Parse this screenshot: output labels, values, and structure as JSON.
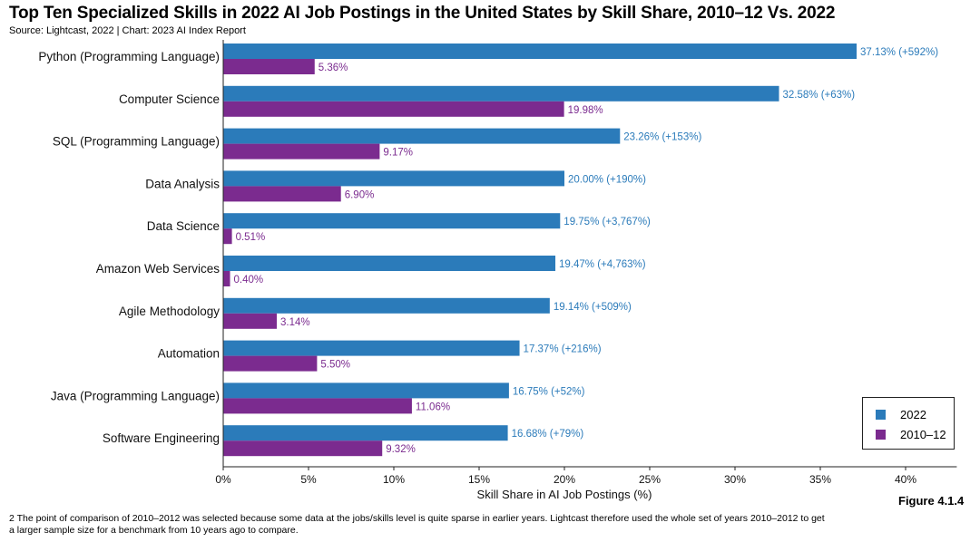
{
  "title": "Top Ten Specialized Skills in 2022 AI Job Postings in the United States by Skill Share, 2010–12 Vs. 2022",
  "source": "Source: Lightcast, 2022 | Chart: 2023 AI Index Report",
  "figure_label": "Figure 4.1.4",
  "footnote": "2 The point of comparison of 2010–2012 was selected because some data at the jobs/skills level is quite sparse in earlier years. Lightcast therefore used the whole set of years 2010–2012 to get a larger sample size for a benchmark from 10 years ago to compare.",
  "colors": {
    "series_2022": "#2b7bba",
    "series_2010": "#7b2b8f"
  },
  "chart_data": {
    "type": "bar",
    "orientation": "horizontal",
    "categories": [
      "Python (Programming Language)",
      "Computer Science",
      "SQL (Programming Language)",
      "Data Analysis",
      "Data Science",
      "Amazon Web Services",
      "Agile Methodology",
      "Automation",
      "Java (Programming Language)",
      "Software Engineering"
    ],
    "series": [
      {
        "name": "2022",
        "values": [
          37.13,
          32.58,
          23.26,
          20.0,
          19.75,
          19.47,
          19.14,
          17.37,
          16.75,
          16.68
        ],
        "labels": [
          "37.13% (+592%)",
          "32.58% (+63%)",
          "23.26% (+153%)",
          "20.00% (+190%)",
          "19.75% (+3,767%)",
          "19.47% (+4,763%)",
          "19.14% (+509%)",
          "17.37% (+216%)",
          "16.75% (+52%)",
          "16.68% (+79%)"
        ]
      },
      {
        "name": "2010–12",
        "values": [
          5.36,
          19.98,
          9.17,
          6.9,
          0.51,
          0.4,
          3.14,
          5.5,
          11.06,
          9.32
        ],
        "labels": [
          "5.36%",
          "19.98%",
          "9.17%",
          "6.90%",
          "0.51%",
          "0.40%",
          "3.14%",
          "5.50%",
          "11.06%",
          "9.32%"
        ]
      }
    ],
    "xlabel": "Skill Share in AI Job Postings (%)",
    "xlim": [
      0,
      43
    ],
    "xticks": [
      0,
      5,
      10,
      15,
      20,
      25,
      30,
      35,
      40
    ],
    "xtick_labels": [
      "0%",
      "5%",
      "10%",
      "15%",
      "20%",
      "25%",
      "30%",
      "35%",
      "40%"
    ],
    "grid": false,
    "legend": "bottom-right"
  }
}
